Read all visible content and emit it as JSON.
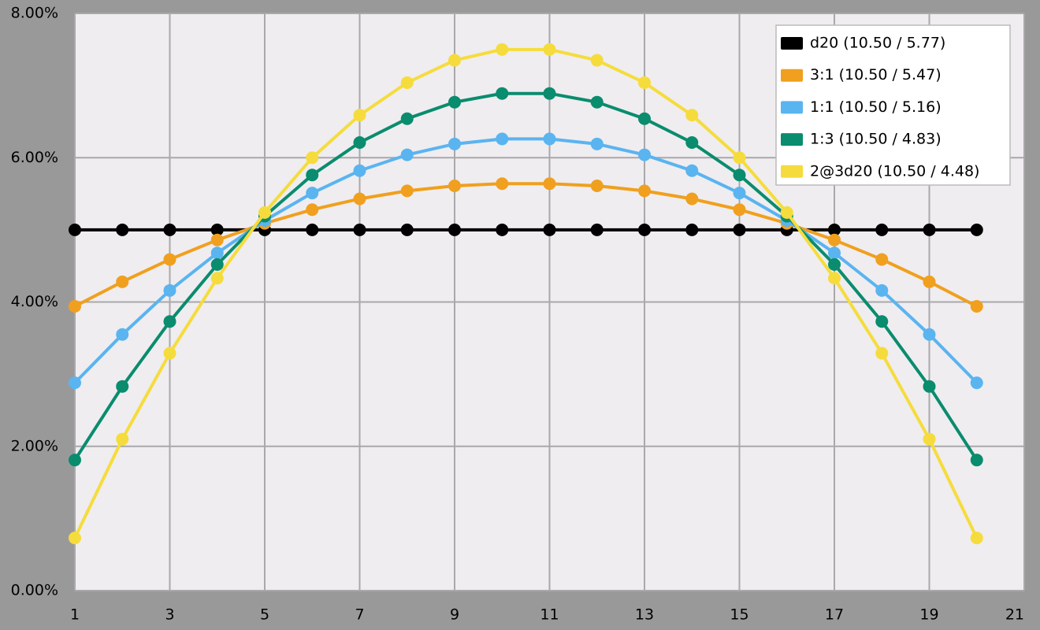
{
  "chart_data": {
    "type": "line",
    "x": [
      1,
      2,
      3,
      4,
      5,
      6,
      7,
      8,
      9,
      10,
      11,
      12,
      13,
      14,
      15,
      16,
      17,
      18,
      19,
      20
    ],
    "series": [
      {
        "name": "d20 (10.50 / 5.77)",
        "color": "#000000",
        "values": [
          5,
          5,
          5,
          5,
          5,
          5,
          5,
          5,
          5,
          5,
          5,
          5,
          5,
          5,
          5,
          5,
          5,
          5,
          5,
          5
        ]
      },
      {
        "name": "3:1 (10.50 / 5.47)",
        "color": "#f0a01e",
        "values": [
          3.94,
          4.28,
          4.59,
          4.86,
          5.09,
          5.28,
          5.43,
          5.54,
          5.61,
          5.64,
          5.64,
          5.61,
          5.54,
          5.43,
          5.28,
          5.09,
          4.86,
          4.59,
          4.28,
          3.94
        ]
      },
      {
        "name": "1:1 (10.50 / 5.16)",
        "color": "#5ab4f0",
        "values": [
          2.88,
          3.55,
          4.16,
          4.68,
          5.13,
          5.51,
          5.82,
          6.04,
          6.19,
          6.26,
          6.26,
          6.19,
          6.04,
          5.82,
          5.51,
          5.13,
          4.68,
          4.16,
          3.55,
          2.88
        ]
      },
      {
        "name": "1:3 (10.50 / 4.83)",
        "color": "#0a8c6e",
        "values": [
          1.81,
          2.83,
          3.73,
          4.52,
          5.19,
          5.76,
          6.21,
          6.54,
          6.77,
          6.89,
          6.89,
          6.77,
          6.54,
          6.21,
          5.76,
          5.19,
          4.52,
          3.73,
          2.83,
          1.81
        ]
      },
      {
        "name": "2@3d20 (10.50 / 4.48)",
        "color": "#f5dc3c",
        "values": [
          0.73,
          2.1,
          3.29,
          4.33,
          5.24,
          6.0,
          6.59,
          7.04,
          7.35,
          7.5,
          7.5,
          7.35,
          7.04,
          6.59,
          6.0,
          5.24,
          4.33,
          3.29,
          2.1,
          0.73
        ]
      }
    ],
    "xlim": [
      1,
      21
    ],
    "xticks": [
      1,
      3,
      5,
      7,
      9,
      11,
      13,
      15,
      17,
      19,
      21
    ],
    "ylim": [
      0,
      8
    ],
    "yticks": [
      {
        "value": 0,
        "label": "0.00%"
      },
      {
        "value": 2,
        "label": "2.00%"
      },
      {
        "value": 4,
        "label": "4.00%"
      },
      {
        "value": 6,
        "label": "6.00%"
      },
      {
        "value": 8,
        "label": "8.00%"
      }
    ],
    "grid": true,
    "legend": "top-right"
  }
}
